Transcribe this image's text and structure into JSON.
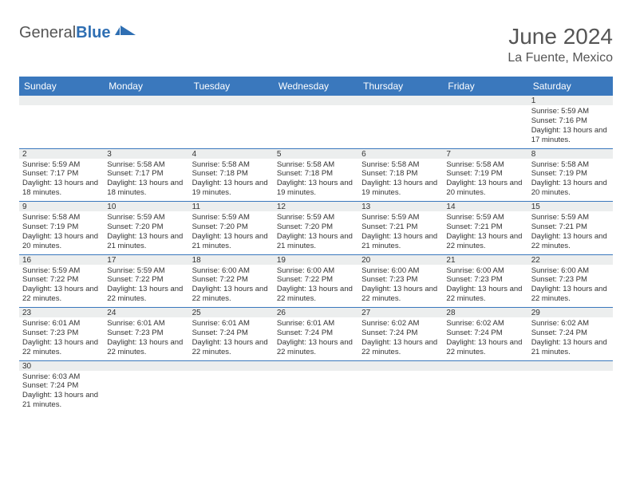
{
  "brand": {
    "part1": "General",
    "part2": "Blue"
  },
  "title": {
    "month": "June 2024",
    "location": "La Fuente, Mexico"
  },
  "colors": {
    "header_bg": "#3a78bd",
    "header_text": "#ffffff",
    "daynum_bg": "#eceeee",
    "row_divider": "#3a78bd",
    "text": "#333333",
    "title_text": "#555555"
  },
  "weekdays": [
    "Sunday",
    "Monday",
    "Tuesday",
    "Wednesday",
    "Thursday",
    "Friday",
    "Saturday"
  ],
  "weeks": [
    [
      null,
      null,
      null,
      null,
      null,
      null,
      {
        "n": "1",
        "sr": "Sunrise: 5:59 AM",
        "ss": "Sunset: 7:16 PM",
        "dl": "Daylight: 13 hours and 17 minutes."
      }
    ],
    [
      {
        "n": "2",
        "sr": "Sunrise: 5:59 AM",
        "ss": "Sunset: 7:17 PM",
        "dl": "Daylight: 13 hours and 18 minutes."
      },
      {
        "n": "3",
        "sr": "Sunrise: 5:58 AM",
        "ss": "Sunset: 7:17 PM",
        "dl": "Daylight: 13 hours and 18 minutes."
      },
      {
        "n": "4",
        "sr": "Sunrise: 5:58 AM",
        "ss": "Sunset: 7:18 PM",
        "dl": "Daylight: 13 hours and 19 minutes."
      },
      {
        "n": "5",
        "sr": "Sunrise: 5:58 AM",
        "ss": "Sunset: 7:18 PM",
        "dl": "Daylight: 13 hours and 19 minutes."
      },
      {
        "n": "6",
        "sr": "Sunrise: 5:58 AM",
        "ss": "Sunset: 7:18 PM",
        "dl": "Daylight: 13 hours and 19 minutes."
      },
      {
        "n": "7",
        "sr": "Sunrise: 5:58 AM",
        "ss": "Sunset: 7:19 PM",
        "dl": "Daylight: 13 hours and 20 minutes."
      },
      {
        "n": "8",
        "sr": "Sunrise: 5:58 AM",
        "ss": "Sunset: 7:19 PM",
        "dl": "Daylight: 13 hours and 20 minutes."
      }
    ],
    [
      {
        "n": "9",
        "sr": "Sunrise: 5:58 AM",
        "ss": "Sunset: 7:19 PM",
        "dl": "Daylight: 13 hours and 20 minutes."
      },
      {
        "n": "10",
        "sr": "Sunrise: 5:59 AM",
        "ss": "Sunset: 7:20 PM",
        "dl": "Daylight: 13 hours and 21 minutes."
      },
      {
        "n": "11",
        "sr": "Sunrise: 5:59 AM",
        "ss": "Sunset: 7:20 PM",
        "dl": "Daylight: 13 hours and 21 minutes."
      },
      {
        "n": "12",
        "sr": "Sunrise: 5:59 AM",
        "ss": "Sunset: 7:20 PM",
        "dl": "Daylight: 13 hours and 21 minutes."
      },
      {
        "n": "13",
        "sr": "Sunrise: 5:59 AM",
        "ss": "Sunset: 7:21 PM",
        "dl": "Daylight: 13 hours and 21 minutes."
      },
      {
        "n": "14",
        "sr": "Sunrise: 5:59 AM",
        "ss": "Sunset: 7:21 PM",
        "dl": "Daylight: 13 hours and 22 minutes."
      },
      {
        "n": "15",
        "sr": "Sunrise: 5:59 AM",
        "ss": "Sunset: 7:21 PM",
        "dl": "Daylight: 13 hours and 22 minutes."
      }
    ],
    [
      {
        "n": "16",
        "sr": "Sunrise: 5:59 AM",
        "ss": "Sunset: 7:22 PM",
        "dl": "Daylight: 13 hours and 22 minutes."
      },
      {
        "n": "17",
        "sr": "Sunrise: 5:59 AM",
        "ss": "Sunset: 7:22 PM",
        "dl": "Daylight: 13 hours and 22 minutes."
      },
      {
        "n": "18",
        "sr": "Sunrise: 6:00 AM",
        "ss": "Sunset: 7:22 PM",
        "dl": "Daylight: 13 hours and 22 minutes."
      },
      {
        "n": "19",
        "sr": "Sunrise: 6:00 AM",
        "ss": "Sunset: 7:22 PM",
        "dl": "Daylight: 13 hours and 22 minutes."
      },
      {
        "n": "20",
        "sr": "Sunrise: 6:00 AM",
        "ss": "Sunset: 7:23 PM",
        "dl": "Daylight: 13 hours and 22 minutes."
      },
      {
        "n": "21",
        "sr": "Sunrise: 6:00 AM",
        "ss": "Sunset: 7:23 PM",
        "dl": "Daylight: 13 hours and 22 minutes."
      },
      {
        "n": "22",
        "sr": "Sunrise: 6:00 AM",
        "ss": "Sunset: 7:23 PM",
        "dl": "Daylight: 13 hours and 22 minutes."
      }
    ],
    [
      {
        "n": "23",
        "sr": "Sunrise: 6:01 AM",
        "ss": "Sunset: 7:23 PM",
        "dl": "Daylight: 13 hours and 22 minutes."
      },
      {
        "n": "24",
        "sr": "Sunrise: 6:01 AM",
        "ss": "Sunset: 7:23 PM",
        "dl": "Daylight: 13 hours and 22 minutes."
      },
      {
        "n": "25",
        "sr": "Sunrise: 6:01 AM",
        "ss": "Sunset: 7:24 PM",
        "dl": "Daylight: 13 hours and 22 minutes."
      },
      {
        "n": "26",
        "sr": "Sunrise: 6:01 AM",
        "ss": "Sunset: 7:24 PM",
        "dl": "Daylight: 13 hours and 22 minutes."
      },
      {
        "n": "27",
        "sr": "Sunrise: 6:02 AM",
        "ss": "Sunset: 7:24 PM",
        "dl": "Daylight: 13 hours and 22 minutes."
      },
      {
        "n": "28",
        "sr": "Sunrise: 6:02 AM",
        "ss": "Sunset: 7:24 PM",
        "dl": "Daylight: 13 hours and 22 minutes."
      },
      {
        "n": "29",
        "sr": "Sunrise: 6:02 AM",
        "ss": "Sunset: 7:24 PM",
        "dl": "Daylight: 13 hours and 21 minutes."
      }
    ],
    [
      {
        "n": "30",
        "sr": "Sunrise: 6:03 AM",
        "ss": "Sunset: 7:24 PM",
        "dl": "Daylight: 13 hours and 21 minutes."
      },
      null,
      null,
      null,
      null,
      null,
      null
    ]
  ]
}
